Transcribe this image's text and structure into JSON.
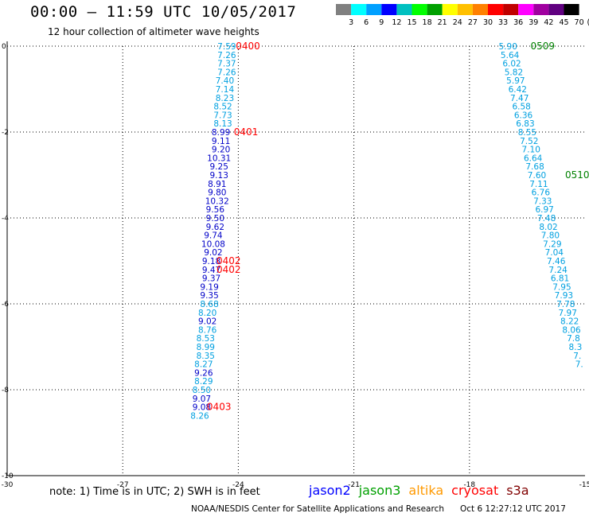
{
  "header": {
    "title": "00:00 – 11:59 UTC 10/05/2017",
    "subtitle": "12 hour collection of altimeter wave heights"
  },
  "color_scale": {
    "labels": [
      "3",
      "6",
      "9",
      "12",
      "15",
      "18",
      "21",
      "24",
      "27",
      "30",
      "33",
      "36",
      "39",
      "42",
      "45",
      "70",
      "(ft)"
    ],
    "colors": [
      "#808080",
      "#00ffff",
      "#00a0ff",
      "#0000ff",
      "#00c0c0",
      "#00ff00",
      "#00a000",
      "#ffff00",
      "#ffc000",
      "#ff8000",
      "#ff0000",
      "#c00000",
      "#ff00ff",
      "#a000a0",
      "#600080",
      "#000000"
    ]
  },
  "chart_data": {
    "type": "scatter",
    "xlim": [
      -30,
      -15
    ],
    "ylim": [
      -10,
      0
    ],
    "x_ticks": [
      "-30",
      "-27",
      "-24",
      "-21",
      "-18",
      "-15"
    ],
    "y_ticks": [
      "0",
      "-2",
      "-4",
      "-6",
      "-8",
      "-10"
    ],
    "grid": true,
    "tracks": [
      {
        "points": [
          {
            "lon": -24.3,
            "lat": 0.0,
            "v": "7.59",
            "c": "c"
          },
          {
            "lon": -24.3,
            "lat": -0.2,
            "v": "7.26",
            "c": "c"
          },
          {
            "lon": -24.3,
            "lat": -0.4,
            "v": "7.37",
            "c": "c"
          },
          {
            "lon": -24.3,
            "lat": -0.6,
            "v": "7.26",
            "c": "c"
          },
          {
            "lon": -24.35,
            "lat": -0.8,
            "v": "7.40",
            "c": "c"
          },
          {
            "lon": -24.35,
            "lat": -1.0,
            "v": "7.14",
            "c": "c"
          },
          {
            "lon": -24.35,
            "lat": -1.2,
            "v": "8.23",
            "c": "c"
          },
          {
            "lon": -24.4,
            "lat": -1.4,
            "v": "8.52",
            "c": "c"
          },
          {
            "lon": -24.4,
            "lat": -1.6,
            "v": "7.73",
            "c": "c"
          },
          {
            "lon": -24.4,
            "lat": -1.8,
            "v": "8.13",
            "c": "c"
          },
          {
            "lon": -24.45,
            "lat": -2.0,
            "v": "8.99",
            "c": "b"
          },
          {
            "lon": -24.45,
            "lat": -2.2,
            "v": "9.11",
            "c": "b"
          },
          {
            "lon": -24.45,
            "lat": -2.4,
            "v": "9.20",
            "c": "b"
          },
          {
            "lon": -24.5,
            "lat": -2.6,
            "v": "10.31",
            "c": "b"
          },
          {
            "lon": -24.5,
            "lat": -2.8,
            "v": "9.25",
            "c": "b"
          },
          {
            "lon": -24.5,
            "lat": -3.0,
            "v": "9.13",
            "c": "b"
          },
          {
            "lon": -24.55,
            "lat": -3.2,
            "v": "8.91",
            "c": "b"
          },
          {
            "lon": -24.55,
            "lat": -3.4,
            "v": "9.80",
            "c": "b"
          },
          {
            "lon": -24.55,
            "lat": -3.6,
            "v": "10.32",
            "c": "b"
          },
          {
            "lon": -24.6,
            "lat": -3.8,
            "v": "9.56",
            "c": "b"
          },
          {
            "lon": -24.6,
            "lat": -4.0,
            "v": "9.50",
            "c": "b"
          },
          {
            "lon": -24.6,
            "lat": -4.2,
            "v": "9.62",
            "c": "b"
          },
          {
            "lon": -24.65,
            "lat": -4.4,
            "v": "9.74",
            "c": "b"
          },
          {
            "lon": -24.65,
            "lat": -4.6,
            "v": "10.08",
            "c": "b"
          },
          {
            "lon": -24.65,
            "lat": -4.8,
            "v": "9.02",
            "c": "b"
          },
          {
            "lon": -24.7,
            "lat": -5.0,
            "v": "9.18",
            "c": "b"
          },
          {
            "lon": -24.7,
            "lat": -5.2,
            "v": "9.47",
            "c": "b"
          },
          {
            "lon": -24.7,
            "lat": -5.4,
            "v": "9.37",
            "c": "b"
          },
          {
            "lon": -24.75,
            "lat": -5.6,
            "v": "9.19",
            "c": "b"
          },
          {
            "lon": -24.75,
            "lat": -5.8,
            "v": "9.35",
            "c": "b"
          },
          {
            "lon": -24.75,
            "lat": -6.0,
            "v": "8.68",
            "c": "c"
          },
          {
            "lon": -24.8,
            "lat": -6.2,
            "v": "8.20",
            "c": "c"
          },
          {
            "lon": -24.8,
            "lat": -6.4,
            "v": "9.02",
            "c": "b"
          },
          {
            "lon": -24.8,
            "lat": -6.6,
            "v": "8.76",
            "c": "c"
          },
          {
            "lon": -24.85,
            "lat": -6.8,
            "v": "8.53",
            "c": "c"
          },
          {
            "lon": -24.85,
            "lat": -7.0,
            "v": "8.99",
            "c": "c"
          },
          {
            "lon": -24.85,
            "lat": -7.2,
            "v": "8.35",
            "c": "c"
          },
          {
            "lon": -24.9,
            "lat": -7.4,
            "v": "8.27",
            "c": "c"
          },
          {
            "lon": -24.9,
            "lat": -7.6,
            "v": "9.26",
            "c": "b"
          },
          {
            "lon": -24.9,
            "lat": -7.8,
            "v": "8.29",
            "c": "c"
          },
          {
            "lon": -24.95,
            "lat": -8.0,
            "v": "8.50",
            "c": "c"
          },
          {
            "lon": -24.95,
            "lat": -8.2,
            "v": "9.07",
            "c": "b"
          },
          {
            "lon": -24.95,
            "lat": -8.4,
            "v": "9.08",
            "c": "b"
          },
          {
            "lon": -25.0,
            "lat": -8.6,
            "v": "8.26",
            "c": "c"
          }
        ],
        "labels": [
          {
            "text": "0400",
            "lon": -23.75,
            "lat": 0.0,
            "color": "#ff0000"
          },
          {
            "text": "0401",
            "lon": -23.8,
            "lat": -2.0,
            "color": "#ff0000"
          },
          {
            "text": "0402",
            "lon": -24.25,
            "lat": -5.0,
            "color": "#ff0000"
          },
          {
            "text": "0402",
            "lon": -24.25,
            "lat": -5.2,
            "color": "#ff0000"
          },
          {
            "text": "0403",
            "lon": -24.5,
            "lat": -8.4,
            "color": "#ff0000"
          }
        ]
      },
      {
        "points": [
          {
            "lon": -17.0,
            "lat": 0.0,
            "v": "5.90",
            "c": "c"
          },
          {
            "lon": -16.95,
            "lat": -0.2,
            "v": "5.64",
            "c": "c"
          },
          {
            "lon": -16.9,
            "lat": -0.4,
            "v": "6.02",
            "c": "c"
          },
          {
            "lon": -16.85,
            "lat": -0.6,
            "v": "5.82",
            "c": "c"
          },
          {
            "lon": -16.8,
            "lat": -0.8,
            "v": "5.97",
            "c": "c"
          },
          {
            "lon": -16.75,
            "lat": -1.0,
            "v": "6.42",
            "c": "c"
          },
          {
            "lon": -16.7,
            "lat": -1.2,
            "v": "7.47",
            "c": "c"
          },
          {
            "lon": -16.65,
            "lat": -1.4,
            "v": "6.58",
            "c": "c"
          },
          {
            "lon": -16.6,
            "lat": -1.6,
            "v": "6.36",
            "c": "c"
          },
          {
            "lon": -16.55,
            "lat": -1.8,
            "v": "6.83",
            "c": "c"
          },
          {
            "lon": -16.5,
            "lat": -2.0,
            "v": "8.55",
            "c": "c"
          },
          {
            "lon": -16.45,
            "lat": -2.2,
            "v": "7.52",
            "c": "c"
          },
          {
            "lon": -16.4,
            "lat": -2.4,
            "v": "7.10",
            "c": "c"
          },
          {
            "lon": -16.35,
            "lat": -2.6,
            "v": "6.64",
            "c": "c"
          },
          {
            "lon": -16.3,
            "lat": -2.8,
            "v": "7.68",
            "c": "c"
          },
          {
            "lon": -16.25,
            "lat": -3.0,
            "v": "7.60",
            "c": "c"
          },
          {
            "lon": -16.2,
            "lat": -3.2,
            "v": "7.11",
            "c": "c"
          },
          {
            "lon": -16.15,
            "lat": -3.4,
            "v": "6.76",
            "c": "c"
          },
          {
            "lon": -16.1,
            "lat": -3.6,
            "v": "7.33",
            "c": "c"
          },
          {
            "lon": -16.05,
            "lat": -3.8,
            "v": "6.97",
            "c": "c"
          },
          {
            "lon": -16.0,
            "lat": -4.0,
            "v": "7.48",
            "c": "c"
          },
          {
            "lon": -15.95,
            "lat": -4.2,
            "v": "8.02",
            "c": "c"
          },
          {
            "lon": -15.9,
            "lat": -4.4,
            "v": "7.80",
            "c": "c"
          },
          {
            "lon": -15.85,
            "lat": -4.6,
            "v": "7.29",
            "c": "c"
          },
          {
            "lon": -15.8,
            "lat": -4.8,
            "v": "7.04",
            "c": "c"
          },
          {
            "lon": -15.75,
            "lat": -5.0,
            "v": "7.46",
            "c": "c"
          },
          {
            "lon": -15.7,
            "lat": -5.2,
            "v": "7.24",
            "c": "c"
          },
          {
            "lon": -15.65,
            "lat": -5.4,
            "v": "6.81",
            "c": "c"
          },
          {
            "lon": -15.6,
            "lat": -5.6,
            "v": "7.95",
            "c": "c"
          },
          {
            "lon": -15.55,
            "lat": -5.8,
            "v": "7.93",
            "c": "c"
          },
          {
            "lon": -15.5,
            "lat": -6.0,
            "v": "7.78",
            "c": "c"
          },
          {
            "lon": -15.45,
            "lat": -6.2,
            "v": "7.97",
            "c": "c"
          },
          {
            "lon": -15.4,
            "lat": -6.4,
            "v": "8.22",
            "c": "c"
          },
          {
            "lon": -15.35,
            "lat": -6.6,
            "v": "8.06",
            "c": "c"
          },
          {
            "lon": -15.3,
            "lat": -6.8,
            "v": "7.8",
            "c": "c"
          },
          {
            "lon": -15.25,
            "lat": -7.0,
            "v": "8.3",
            "c": "c"
          },
          {
            "lon": -15.2,
            "lat": -7.2,
            "v": "7.",
            "c": "c"
          },
          {
            "lon": -15.15,
            "lat": -7.4,
            "v": "7.",
            "c": "c"
          }
        ],
        "labels": [
          {
            "text": "0509",
            "lon": -16.1,
            "lat": 0.0,
            "color": "#008000"
          },
          {
            "text": "0510",
            "lon": -15.2,
            "lat": -3.0,
            "color": "#008000"
          }
        ]
      }
    ],
    "point_colors": {
      "c": "#00a0e0",
      "b": "#0000c8"
    }
  },
  "footer": {
    "note": "note: 1) Time is in UTC; 2) SWH is in feet",
    "legend": [
      {
        "name": "jason2",
        "color": "#0000ff"
      },
      {
        "name": "jason3",
        "color": "#00a000"
      },
      {
        "name": "altika",
        "color": "#ff9900"
      },
      {
        "name": "cryosat",
        "color": "#ff0000"
      },
      {
        "name": "s3a",
        "color": "#800000"
      }
    ],
    "credit": "NOAA/NESDIS Center for Satellite Applications and Research",
    "timestamp": "Oct  6 12:27:12 UTC 2017"
  }
}
